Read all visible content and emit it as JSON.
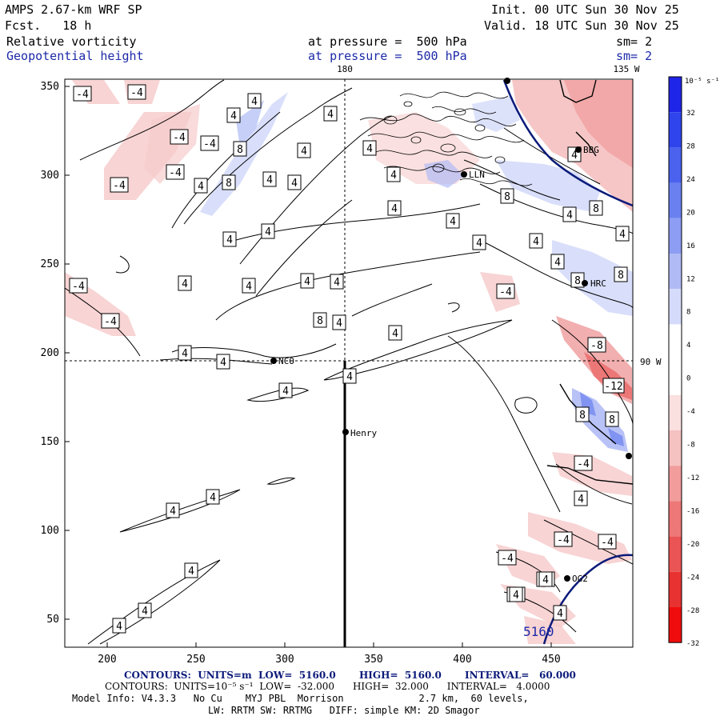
{
  "header": {
    "model": "AMPS 2.67-km WRF SP",
    "forecast": "Fcst.   18 h",
    "init": "Init. 00 UTC Sun 30 Nov 25",
    "valid": "Valid. 18 UTC Sun 30 Nov 25",
    "field1": "Relative vorticity",
    "field1_level": "at pressure =  500 hPa",
    "field1_sm": "sm= 2",
    "field2": "Geopotential height",
    "field2_level": "at pressure =  500 hPa",
    "field2_sm": "sm= 2"
  },
  "map": {
    "x_ticks": [
      "200",
      "250",
      "300",
      "350",
      "400",
      "450"
    ],
    "y_ticks": [
      "350",
      "300",
      "250",
      "200",
      "150",
      "100",
      "50"
    ],
    "meridian_180": "180",
    "meridian_135w": "135 W",
    "meridian_90w": "90 W",
    "height_contour_label": "5160",
    "stations": [
      {
        "name": "BBG"
      },
      {
        "name": "LLN"
      },
      {
        "name": "HRC"
      },
      {
        "name": "NCO"
      },
      {
        "name": "Henry"
      },
      {
        "name": "OG2"
      }
    ],
    "vort_labels": [
      "-4",
      "-4",
      "-4",
      "-4",
      "-4",
      "-4",
      "-4",
      "-4",
      "-4",
      "-4",
      "-4",
      "-4",
      "-4",
      "-4",
      "-4",
      "-8",
      "-12",
      "4",
      "4",
      "4",
      "4",
      "4",
      "4",
      "4",
      "4",
      "4",
      "4",
      "4",
      "4",
      "4",
      "4",
      "4",
      "4",
      "4",
      "4",
      "4",
      "4",
      "4",
      "4",
      "4",
      "4",
      "4",
      "4",
      "4",
      "4",
      "4",
      "4",
      "4",
      "4",
      "4",
      "4",
      "4",
      "4",
      "4",
      "4",
      "4",
      "8",
      "8",
      "8",
      "8",
      "8",
      "8",
      "8",
      "8",
      "8"
    ]
  },
  "colorbar": {
    "unit": "10⁻⁵ s⁻¹",
    "labels": [
      "32",
      "28",
      "24",
      "20",
      "16",
      "12",
      "8",
      "4",
      "0",
      "-4",
      "-8",
      "-12",
      "-16",
      "-20",
      "-24",
      "-28",
      "-32"
    ],
    "colors": [
      "#1f25e8",
      "#2f44ec",
      "#4a62ee",
      "#6a80f0",
      "#8d9df3",
      "#b0bbf5",
      "#d5dbfa",
      "#ffffff",
      "#ffffff",
      "#fbe0e0",
      "#f6c1c1",
      "#f29c9c",
      "#ee7777",
      "#ea5454",
      "#e83232",
      "#f00c0c"
    ]
  },
  "footer": {
    "line1": "CONTOURS:  UNITS=m  LOW=  5160.0       HIGH=  5160.0       INTERVAL=   60.000",
    "line2": "CONTOURS:  UNITS=10⁻⁵ s⁻¹  LOW=  -32.000      HIGH=  32.000      INTERVAL=   4.0000",
    "line3": "Model Info: V4.3.3   No Cu    MYJ PBL  Morrison             2.7 km,  60 levels,",
    "line4": "LW: RRTM SW: RRTMG   DIFF: simple KM: 2D Smagor"
  }
}
